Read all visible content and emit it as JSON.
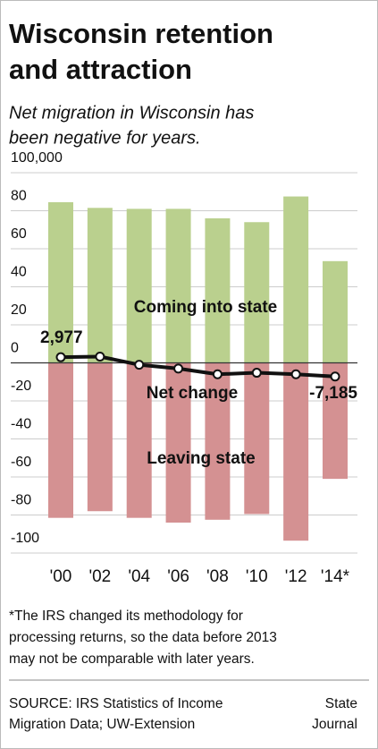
{
  "chart_data": {
    "type": "bar",
    "title_lines": [
      "Wisconsin retention",
      "and attraction"
    ],
    "subtitle_lines": [
      "Net migration in Wisconsin has",
      "been negative for years."
    ],
    "categories": [
      "'00",
      "'02",
      "'04",
      "'06",
      "'08",
      "'10",
      "'12",
      "'14*"
    ],
    "series": [
      {
        "name": "Coming into state",
        "color": "#bad08e",
        "values": [
          84500,
          81500,
          81000,
          81000,
          76000,
          74000,
          87500,
          53500
        ]
      },
      {
        "name": "Leaving state",
        "color": "#d49192",
        "values": [
          -81500,
          -78000,
          -81500,
          -84000,
          -82500,
          -79500,
          -93500,
          -61000
        ]
      },
      {
        "name": "Net change",
        "type": "line",
        "color": "#111111",
        "values": [
          2977,
          3300,
          -1000,
          -3000,
          -6000,
          -5200,
          -6000,
          -7185
        ],
        "value_labels": [
          "2,977",
          null,
          null,
          null,
          null,
          null,
          null,
          "-7,185"
        ]
      }
    ],
    "ylim": [
      -100000,
      100000
    ],
    "yticks": [
      {
        "value": 100000,
        "label": "100,000"
      },
      {
        "value": 80000,
        "label": "80"
      },
      {
        "value": 60000,
        "label": "60"
      },
      {
        "value": 40000,
        "label": "40"
      },
      {
        "value": 20000,
        "label": "20"
      },
      0,
      {
        "value": -20000,
        "label": "-20"
      },
      {
        "value": -40000,
        "label": "-40"
      },
      {
        "value": -60000,
        "label": "-60"
      },
      {
        "value": -80000,
        "label": "-80"
      },
      {
        "value": -100000,
        "label": "-100"
      }
    ],
    "grid": true,
    "footnote_lines": [
      "*The IRS changed its methodology for",
      "processing returns, so the data before 2013",
      "may not be comparable with later years."
    ],
    "source_lines": [
      "SOURCE: IRS Statistics of Income",
      "Migration Data; UW-Extension"
    ],
    "credit_lines": [
      "State",
      "Journal"
    ]
  }
}
